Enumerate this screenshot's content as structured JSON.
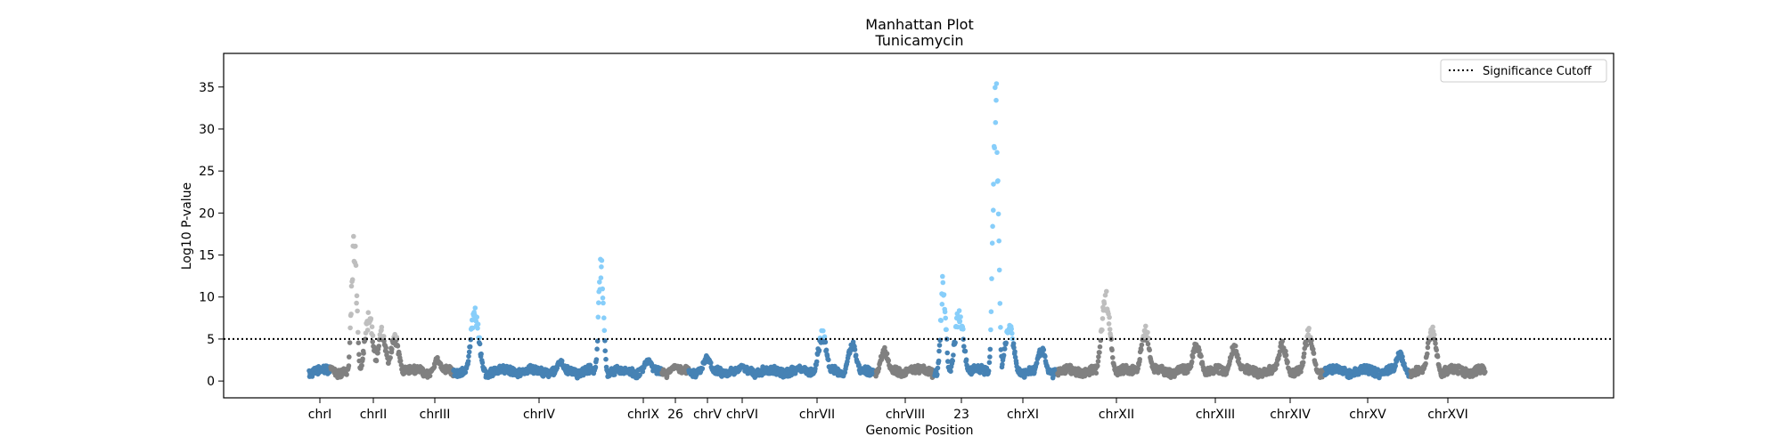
{
  "chart_data": {
    "type": "scatter",
    "title": "Manhattan Plot",
    "subtitle": "Tunicamycin",
    "xlabel": "Genomic Position",
    "ylabel": "Log10 P-value",
    "ylim": [
      -2,
      39
    ],
    "yticks": [
      0,
      5,
      10,
      15,
      20,
      25,
      30,
      35
    ],
    "significance_cutoff": 5,
    "legend": {
      "label": "Significance Cutoff",
      "placement": "top-right"
    },
    "grid": false,
    "colors": {
      "dark_grey": "#808080",
      "light_grey": "#bebebe",
      "dark_blue": "#4682b4",
      "light_blue": "#87cefa",
      "cutoff_line": "#000000"
    },
    "x_tick_labels": [
      "chrI",
      "chrII",
      "chrIII",
      "chrIV",
      "chrIX",
      "26",
      "chrV",
      "chrVI",
      "chrVII",
      "chrVIII",
      "23",
      "chrXI",
      "chrXII",
      "chrXIII",
      "chrXIV",
      "chrXV",
      "chrXVI"
    ],
    "chromosomes": [
      {
        "name": "chrI",
        "color": "dark_blue",
        "start": 0.0,
        "end": 0.2,
        "peaks": []
      },
      {
        "name": "chrII",
        "color": "dark_grey",
        "start": 0.2,
        "end": 1.0,
        "peaks": [
          [
            0.42,
            18.6
          ],
          [
            0.56,
            8.4
          ],
          [
            0.68,
            6.5
          ],
          [
            0.8,
            5.8
          ]
        ]
      },
      {
        "name": "chrIII",
        "color": "dark_grey",
        "start": 1.0,
        "end": 1.35,
        "peaks": [
          [
            1.2,
            2.8
          ]
        ]
      },
      {
        "name": "chrIV",
        "color": "dark_blue",
        "start": 1.35,
        "end": 2.95,
        "peaks": [
          [
            1.55,
            8.9
          ],
          [
            2.35,
            2.6
          ],
          [
            2.73,
            15.1
          ]
        ]
      },
      {
        "name": "chrIX",
        "color": "dark_blue",
        "start": 2.95,
        "end": 3.3,
        "peaks": [
          [
            3.17,
            2.8
          ]
        ]
      },
      {
        "name": "26",
        "color": "dark_grey",
        "start": 3.3,
        "end": 3.55,
        "peaks": [
          [
            3.42,
            2.0
          ]
        ]
      },
      {
        "name": "chrV",
        "color": "dark_blue",
        "start": 3.55,
        "end": 3.9,
        "peaks": [
          [
            3.72,
            3.2
          ]
        ]
      },
      {
        "name": "chrVI",
        "color": "dark_blue",
        "start": 3.9,
        "end": 4.2,
        "peaks": [
          [
            4.05,
            1.8
          ]
        ]
      },
      {
        "name": "chrVII",
        "color": "dark_blue",
        "start": 4.2,
        "end": 5.3,
        "peaks": [
          [
            4.8,
            6.2
          ],
          [
            5.08,
            5.0
          ]
        ]
      },
      {
        "name": "chrVIII",
        "color": "dark_grey",
        "start": 5.3,
        "end": 5.85,
        "peaks": [
          [
            5.38,
            4.0
          ],
          [
            5.62,
            1.5
          ]
        ]
      },
      {
        "name": "23",
        "color": "dark_blue",
        "start": 5.85,
        "end": 6.35,
        "peaks": [
          [
            5.93,
            13.0
          ],
          [
            6.08,
            9.0
          ]
        ]
      },
      {
        "name": "chrXI",
        "color": "dark_blue",
        "start": 6.35,
        "end": 7.0,
        "peaks": [
          [
            6.42,
            37.5
          ],
          [
            6.55,
            7.4
          ],
          [
            6.85,
            4.2
          ]
        ]
      },
      {
        "name": "chrXII",
        "color": "dark_grey",
        "start": 7.0,
        "end": 8.1,
        "peaks": [
          [
            7.45,
            10.9
          ],
          [
            7.82,
            6.7
          ]
        ]
      },
      {
        "name": "chrXIII",
        "color": "dark_grey",
        "start": 8.1,
        "end": 8.85,
        "peaks": [
          [
            8.3,
            4.9
          ],
          [
            8.65,
            4.5
          ]
        ]
      },
      {
        "name": "chrXIV",
        "color": "dark_grey",
        "start": 8.85,
        "end": 9.5,
        "peaks": [
          [
            9.1,
            4.8
          ],
          [
            9.35,
            6.4
          ]
        ]
      },
      {
        "name": "chrXV",
        "color": "dark_blue",
        "start": 9.5,
        "end": 10.3,
        "peaks": [
          [
            10.2,
            3.5
          ]
        ]
      },
      {
        "name": "chrXVI",
        "color": "dark_grey",
        "start": 10.3,
        "end": 11.0,
        "peaks": [
          [
            10.5,
            6.8
          ]
        ]
      }
    ]
  }
}
